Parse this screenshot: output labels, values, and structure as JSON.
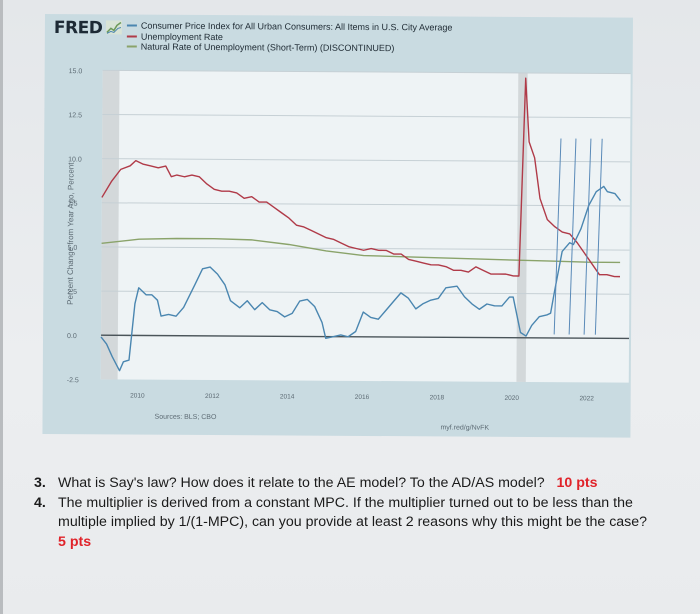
{
  "header": {
    "logo": "FRED",
    "logo_icon": "line-chart-icon"
  },
  "legend": [
    {
      "label": "Consumer Price Index for All Urban Consumers: All Items in U.S. City Average",
      "color": "#4a86b0"
    },
    {
      "label": "Unemployment Rate",
      "color": "#b03a48"
    },
    {
      "label": "Natural Rate of Unemployment (Short-Term) (DISCONTINUED)",
      "color": "#8aa36a"
    }
  ],
  "footer": {
    "sources": "Sources: BLS; CBO",
    "link": "myf.red/g/NvFK"
  },
  "questions": [
    {
      "num": "3.",
      "text": "What is Say's law? How does it relate to the AE model? To the AD/AS model?",
      "points": "10 pts"
    },
    {
      "num": "4.",
      "text": "The multiplier is derived from a constant MPC. If the multiplier turned out to be less than the multiple implied by 1/(1-MPC), can you provide at least 2 reasons why this might be the case?",
      "points": "5 pts"
    }
  ],
  "chart_data": {
    "type": "line",
    "title": "",
    "xlabel": "",
    "ylabel": "Percent Change from Year Ago, Percent",
    "ylim": [
      -2.5,
      15.0
    ],
    "xlim": [
      2009.0,
      2023.1
    ],
    "y_ticks": [
      "15.0",
      "12.5",
      "10.0",
      "7.5",
      "5.0",
      "2.5",
      "0.0",
      "-2.5"
    ],
    "x_ticks": [
      "2010",
      "2012",
      "2014",
      "2016",
      "2018",
      "2020",
      "2022"
    ],
    "grid": true,
    "legend_position": "top",
    "recessions": [
      [
        2009.0,
        2009.45
      ],
      [
        2020.1,
        2020.35
      ]
    ],
    "series": [
      {
        "name": "Consumer Price Index for All Urban Consumers: All Items in U.S. City Average",
        "color": "#4a86b0",
        "x": [
          2009.0,
          2009.15,
          2009.3,
          2009.5,
          2009.6,
          2009.75,
          2009.9,
          2010.0,
          2010.2,
          2010.35,
          2010.5,
          2010.6,
          2010.8,
          2011.0,
          2011.2,
          2011.5,
          2011.7,
          2011.9,
          2012.1,
          2012.3,
          2012.45,
          2012.7,
          2012.9,
          2013.1,
          2013.3,
          2013.5,
          2013.7,
          2013.9,
          2014.1,
          2014.3,
          2014.5,
          2014.7,
          2014.9,
          2015.0,
          2015.2,
          2015.4,
          2015.6,
          2015.8,
          2016.0,
          2016.2,
          2016.4,
          2016.6,
          2016.8,
          2017.0,
          2017.2,
          2017.4,
          2017.6,
          2017.8,
          2018.0,
          2018.2,
          2018.5,
          2018.7,
          2018.9,
          2019.1,
          2019.3,
          2019.5,
          2019.7,
          2019.9,
          2020.0,
          2020.2,
          2020.35,
          2020.5,
          2020.7,
          2020.9,
          2021.0,
          2021.1,
          2021.3,
          2021.5,
          2021.6,
          2021.8,
          2022.0,
          2022.2,
          2022.4,
          2022.5,
          2022.7,
          2022.85
        ],
        "values": [
          -0.1,
          -0.5,
          -1.2,
          -2.0,
          -1.5,
          -1.4,
          1.8,
          2.7,
          2.3,
          2.3,
          2.0,
          1.1,
          1.2,
          1.1,
          1.6,
          2.9,
          3.8,
          3.9,
          3.5,
          2.9,
          2.0,
          1.6,
          2.0,
          1.5,
          1.9,
          1.5,
          1.4,
          1.1,
          1.3,
          2.0,
          2.1,
          1.7,
          0.8,
          -0.1,
          0.0,
          0.1,
          0.0,
          0.3,
          1.4,
          1.1,
          1.0,
          1.5,
          2.0,
          2.5,
          2.2,
          1.6,
          1.9,
          2.1,
          2.2,
          2.8,
          2.9,
          2.3,
          1.9,
          1.6,
          1.9,
          1.8,
          1.8,
          2.3,
          2.3,
          0.3,
          0.1,
          0.7,
          1.2,
          1.3,
          1.4,
          2.6,
          4.9,
          5.4,
          5.3,
          6.2,
          7.5,
          8.3,
          8.6,
          8.3,
          8.2,
          7.8
        ]
      },
      {
        "name": "Unemployment Rate",
        "color": "#b03a48",
        "x": [
          2009.0,
          2009.25,
          2009.5,
          2009.75,
          2009.9,
          2010.1,
          2010.3,
          2010.5,
          2010.7,
          2010.85,
          2011.0,
          2011.2,
          2011.4,
          2011.6,
          2011.8,
          2012.0,
          2012.2,
          2012.4,
          2012.6,
          2012.8,
          2013.0,
          2013.2,
          2013.4,
          2013.6,
          2013.8,
          2014.0,
          2014.2,
          2014.4,
          2014.6,
          2014.8,
          2015.0,
          2015.2,
          2015.4,
          2015.6,
          2015.8,
          2016.0,
          2016.2,
          2016.4,
          2016.6,
          2016.8,
          2017.0,
          2017.2,
          2017.4,
          2017.6,
          2017.8,
          2018.0,
          2018.2,
          2018.4,
          2018.6,
          2018.8,
          2019.0,
          2019.2,
          2019.4,
          2019.6,
          2019.8,
          2020.0,
          2020.15,
          2020.3,
          2020.4,
          2020.55,
          2020.7,
          2020.9,
          2021.1,
          2021.3,
          2021.5,
          2021.7,
          2021.9,
          2022.1,
          2022.3,
          2022.5,
          2022.7,
          2022.85
        ],
        "values": [
          7.8,
          8.7,
          9.4,
          9.6,
          9.9,
          9.7,
          9.6,
          9.5,
          9.6,
          9.0,
          9.1,
          9.0,
          9.1,
          9.0,
          8.6,
          8.3,
          8.2,
          8.2,
          8.1,
          7.8,
          7.9,
          7.6,
          7.6,
          7.3,
          7.0,
          6.7,
          6.3,
          6.2,
          6.0,
          5.8,
          5.6,
          5.5,
          5.3,
          5.1,
          5.0,
          4.9,
          5.0,
          4.9,
          4.9,
          4.7,
          4.7,
          4.4,
          4.3,
          4.2,
          4.1,
          4.1,
          4.0,
          3.8,
          3.8,
          3.7,
          4.0,
          3.8,
          3.6,
          3.6,
          3.6,
          3.5,
          3.5,
          14.7,
          11.1,
          10.2,
          7.9,
          6.7,
          6.3,
          6.0,
          5.9,
          5.4,
          4.8,
          4.2,
          3.6,
          3.6,
          3.5,
          3.5
        ]
      },
      {
        "name": "Natural Rate of Unemployment (Short-Term) (DISCONTINUED)",
        "color": "#8aa36a",
        "x": [
          2009.0,
          2010.0,
          2011.0,
          2012.0,
          2013.0,
          2014.0,
          2015.0,
          2016.0,
          2017.0,
          2018.0,
          2019.0,
          2020.0,
          2021.0,
          2022.0,
          2022.85
        ],
        "values": [
          5.2,
          5.45,
          5.5,
          5.5,
          5.45,
          5.2,
          4.85,
          4.6,
          4.55,
          4.5,
          4.45,
          4.4,
          4.35,
          4.3,
          4.3
        ]
      }
    ],
    "annotations": [
      "Four hand-drawn vertical blue lines between 2021 and 2022.6"
    ]
  }
}
